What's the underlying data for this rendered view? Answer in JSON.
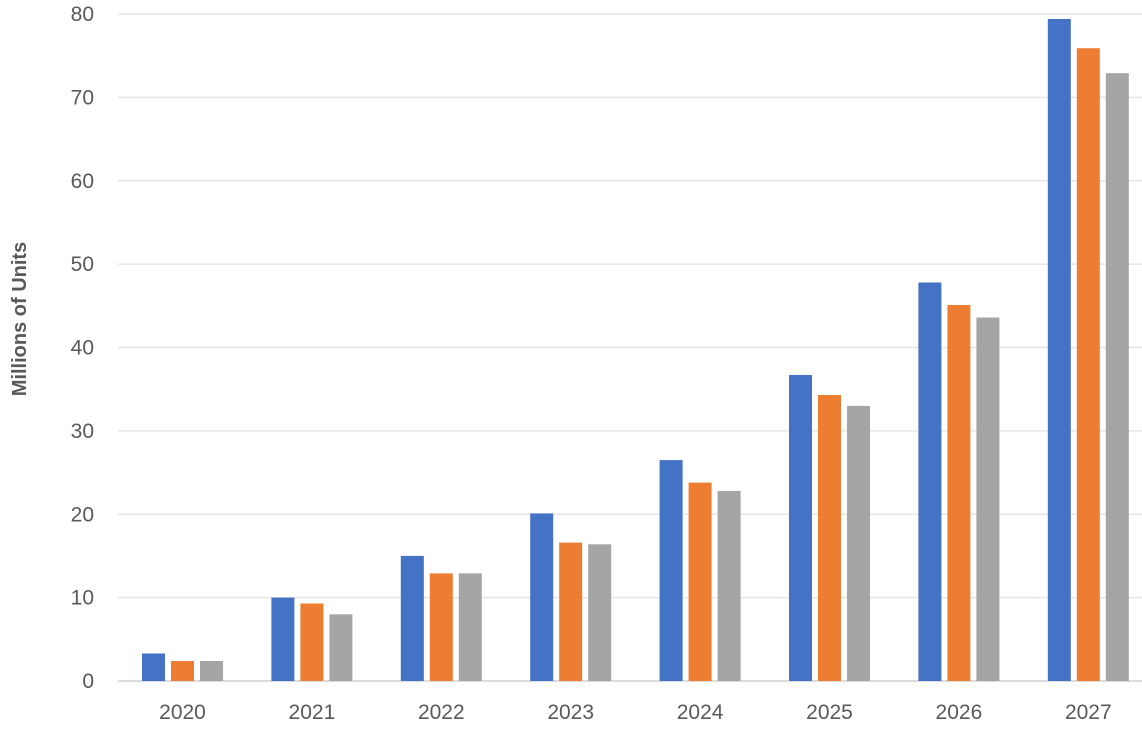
{
  "chart_data": {
    "type": "bar",
    "categories": [
      "2020",
      "2021",
      "2022",
      "2023",
      "2024",
      "2025",
      "2026",
      "2027"
    ],
    "series": [
      {
        "color": "#4472c4",
        "values": [
          3.3,
          10.0,
          15.0,
          20.1,
          26.5,
          36.7,
          47.8,
          79.4
        ]
      },
      {
        "color": "#ed7d31",
        "values": [
          2.4,
          9.3,
          12.9,
          16.6,
          23.8,
          34.3,
          45.1,
          75.9
        ]
      },
      {
        "color": "#a5a5a5",
        "values": [
          2.4,
          8.0,
          12.9,
          16.4,
          22.8,
          33.0,
          43.6,
          72.9
        ]
      }
    ],
    "title": "",
    "xlabel": "",
    "ylabel": "Millions of Units",
    "ylim": [
      0,
      80
    ],
    "yticks": [
      0,
      10,
      20,
      30,
      40,
      50,
      60,
      70,
      80
    ],
    "grid": true,
    "legend": "none"
  }
}
